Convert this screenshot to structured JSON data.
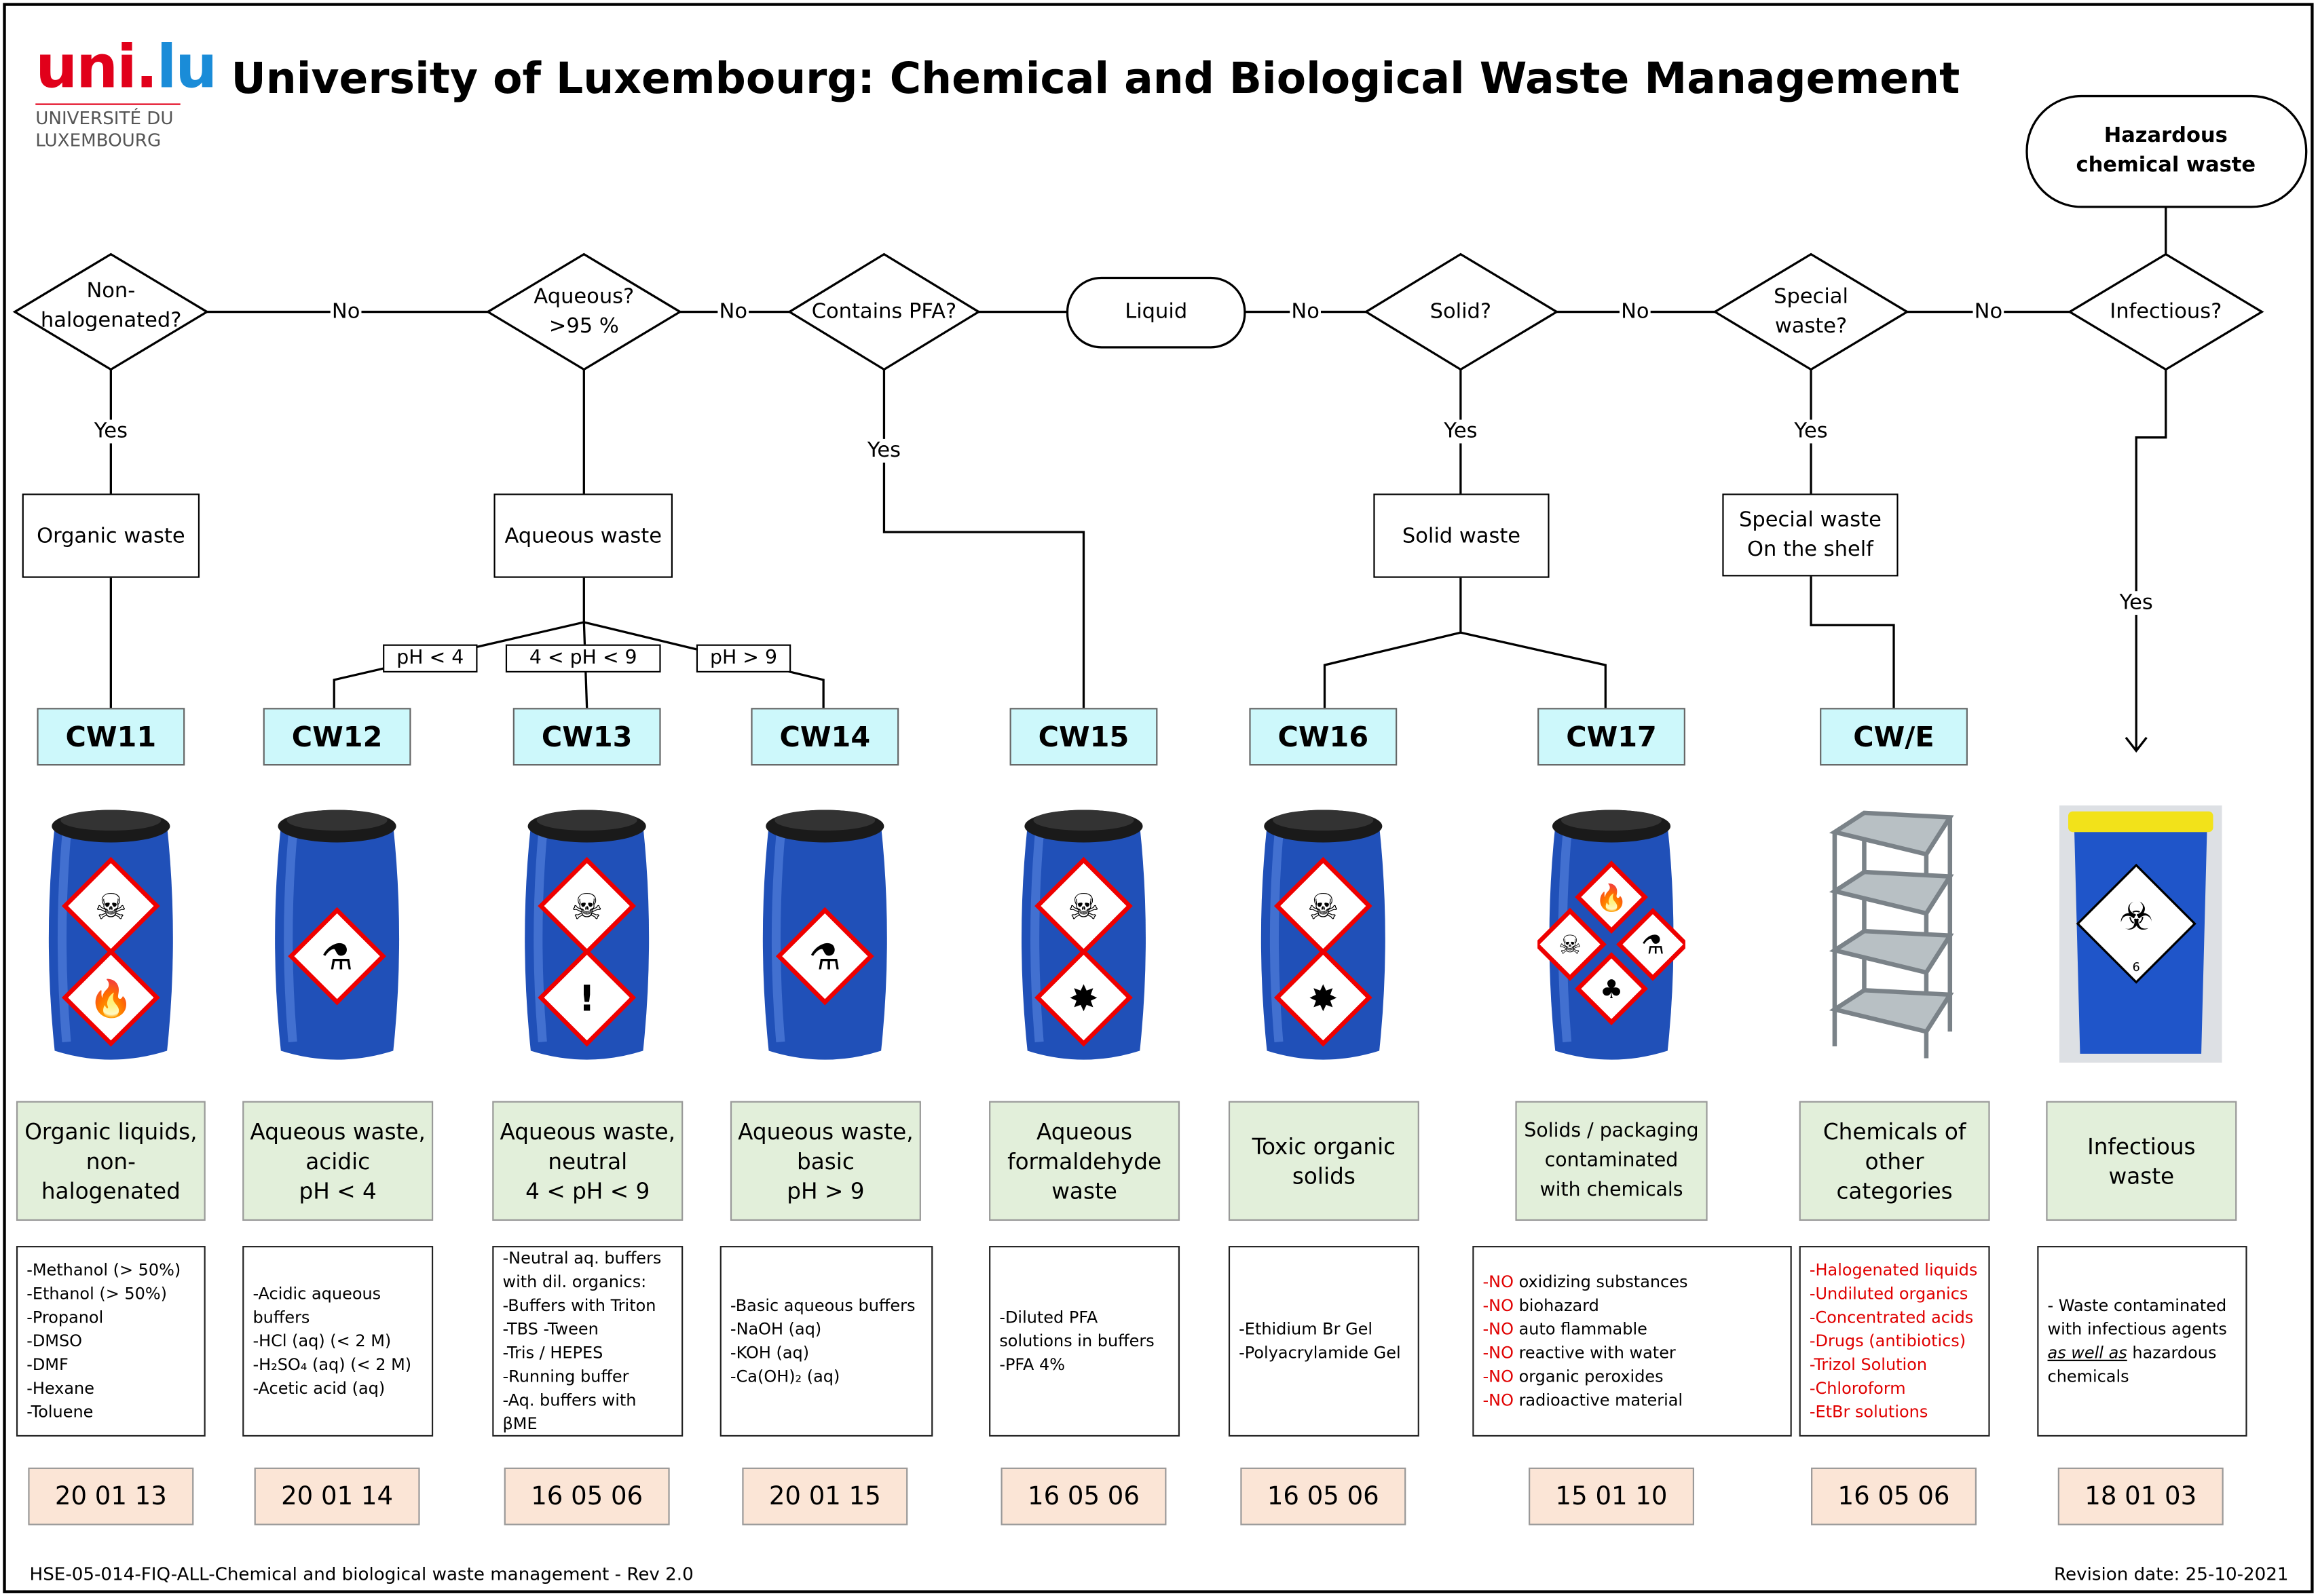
{
  "title": "University of Luxembourg: Chemical and Biological Waste Management",
  "logo": {
    "mark": "uni.lu",
    "line1": "UNIVERSITÉ DU",
    "line2": "LUXEMBOURG"
  },
  "colors": {
    "cw_box": "#cdf8fb",
    "category_box": "#e2efda",
    "code_box": "#fbe5d6",
    "warning_text": "#e00000",
    "barrel": "#2050b8"
  },
  "flow": {
    "start": "Hazardous chemical waste",
    "infectious_q": "Infectious?",
    "special_q": "Special waste?",
    "solid_q": "Solid?",
    "liquid": "Liquid",
    "pfa_q": "Contains PFA?",
    "aqueous_q": "Aqueous? >95 %",
    "nonhalo_q": "Non-halogenated?",
    "no": "No",
    "yes": "Yes",
    "organic_waste": "Organic waste",
    "aqueous_waste": "Aqueous waste",
    "solid_waste": "Solid waste",
    "special_waste": "Special waste On the shelf",
    "ph_low": "pH < 4",
    "ph_mid": "4 < pH < 9",
    "ph_high": "pH > 9"
  },
  "columns": [
    {
      "cw": "CW11",
      "image": "barrel",
      "pictograms": [
        "skull-icon",
        "flame-icon"
      ],
      "category": [
        "Organic liquids,",
        "non-",
        "halogenated"
      ],
      "items": [
        "-Methanol (> 50%)",
        "-Ethanol (> 50%)",
        "-Propanol",
        "-DMSO",
        "-DMF",
        "-Hexane",
        "-Toluene"
      ],
      "code": "20 01 13"
    },
    {
      "cw": "CW12",
      "image": "barrel",
      "pictograms": [
        "corrosive-icon"
      ],
      "category": [
        "Aqueous waste,",
        "acidic",
        "pH < 4"
      ],
      "items": [
        "-Acidic aqueous",
        "buffers",
        "-HCl (aq) (< 2 M)",
        "-H₂SO₄ (aq) (< 2 M)",
        "-Acetic acid (aq)"
      ],
      "code": "20 01 14"
    },
    {
      "cw": "CW13",
      "image": "barrel",
      "pictograms": [
        "skull-icon",
        "exclamation-icon"
      ],
      "category": [
        "Aqueous waste,",
        "neutral",
        "4 < pH < 9"
      ],
      "items": [
        "-Neutral aq. buffers",
        "with dil. organics:",
        "-Buffers with Triton",
        "-TBS -Tween",
        "-Tris / HEPES",
        "-Running buffer",
        "-Aq. buffers with",
        "βME"
      ],
      "code": "16 05 06"
    },
    {
      "cw": "CW14",
      "image": "barrel",
      "pictograms": [
        "corrosive-icon"
      ],
      "category": [
        "Aqueous waste,",
        "basic",
        "pH > 9"
      ],
      "items": [
        "-Basic aqueous buffers",
        "-NaOH (aq)",
        "-KOH (aq)",
        "-Ca(OH)₂ (aq)"
      ],
      "code": "20 01 15"
    },
    {
      "cw": "CW15",
      "image": "barrel",
      "pictograms": [
        "skull-icon",
        "health-hazard-icon"
      ],
      "category": [
        "Aqueous",
        "formaldehyde",
        "waste"
      ],
      "items": [
        "-Diluted PFA",
        "solutions in buffers",
        "-PFA 4%"
      ],
      "code": "16 05 06"
    },
    {
      "cw": "CW16",
      "image": "barrel",
      "pictograms": [
        "skull-icon",
        "health-hazard-icon"
      ],
      "category": [
        "Toxic organic",
        "solids"
      ],
      "items": [
        "-Ethidium Br Gel",
        "-Polyacrylamide Gel"
      ],
      "code": "16 05 06"
    },
    {
      "cw": "CW17",
      "image": "barrel",
      "pictograms": [
        "flame-icon",
        "skull-icon",
        "corrosive-icon",
        "environment-icon"
      ],
      "category": [
        "Solids / packaging",
        "contaminated",
        "with chemicals"
      ],
      "items": [
        {
          "no": "-NO",
          "text": " oxidizing substances"
        },
        {
          "no": "-NO",
          "text": " biohazard"
        },
        {
          "no": "-NO",
          "text": " auto flammable"
        },
        {
          "no": "-NO",
          "text": " reactive with water"
        },
        {
          "no": "-NO",
          "text": " organic peroxides"
        },
        {
          "no": "-NO",
          "text": " radioactive material"
        }
      ],
      "code": "15 01 10"
    },
    {
      "cw": "CW/E",
      "image": "shelf",
      "pictograms": [],
      "category": [
        "Chemicals of",
        "other",
        "categories"
      ],
      "items_red": [
        "-Halogenated liquids",
        "-Undiluted organics",
        "-Concentrated acids",
        "-Drugs (antibiotics)",
        "-Trizol Solution",
        "-Chloroform",
        "-EtBr solutions"
      ],
      "code": "16 05 06"
    },
    {
      "cw": "",
      "image": "bin",
      "pictograms": [
        "biohazard-icon"
      ],
      "bin_class": "6",
      "category": [
        "Infectious",
        "waste"
      ],
      "items_infect": {
        "l1": "- Waste contaminated",
        "l2": "with infectious agents",
        "em": "as well as",
        "l3": " hazardous",
        "l4": "chemicals"
      },
      "code": "18 01 03"
    }
  ],
  "footer": {
    "left": "HSE-05-014-FIQ-ALL-Chemical and biological waste management - Rev 2.0",
    "right": "Revision date: 25-10-2021"
  }
}
